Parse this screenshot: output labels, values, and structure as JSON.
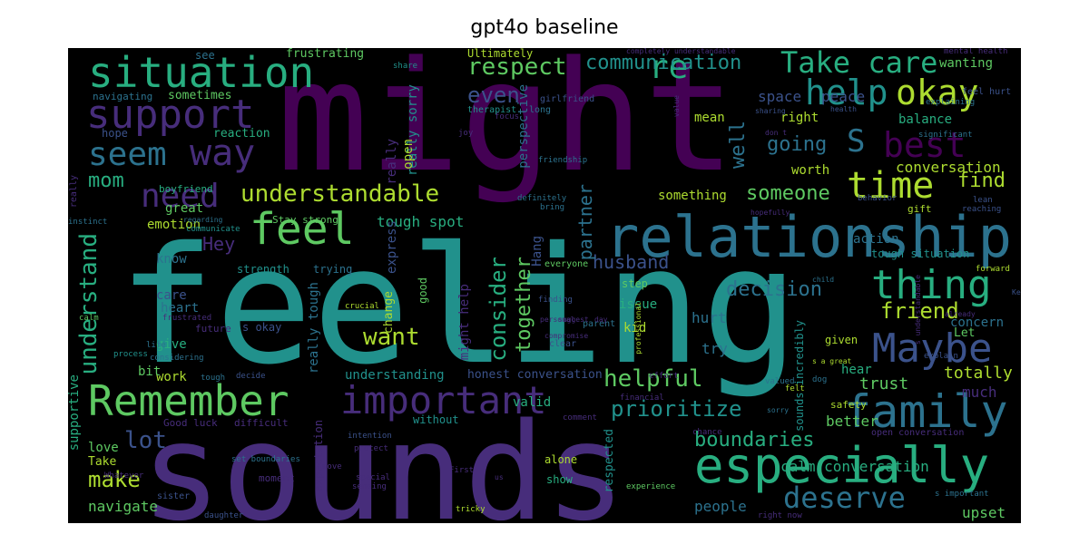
{
  "figure": {
    "title": "gpt4o baseline"
  },
  "colors": {
    "background": "#000000",
    "purple": "#440154",
    "indigo": "#472d7b",
    "blue": "#3b528b",
    "slate": "#2c728e",
    "teal": "#21918c",
    "green": "#28ae80",
    "lime": "#5ec962",
    "yellow": "#addc30"
  },
  "words": {
    "feeling": "feeling",
    "might": "might",
    "sounds": "sounds",
    "relationship": "relationship",
    "remember": "Remember",
    "especially": "especially",
    "family": "family",
    "important": "important",
    "situation": "situation",
    "support": "support",
    "feel": "feel",
    "maybe": "Maybe",
    "thing": "thing",
    "help": "help",
    "okay": "okay",
    "time": "time",
    "take_care": "Take care",
    "re": "re",
    "need": "need",
    "seem": "seem",
    "way": "way",
    "best": "best",
    "s": "S",
    "deserve": "deserve",
    "understandable": "understandable",
    "respect": "respect",
    "even": "even",
    "someone": "someone",
    "going": "going",
    "mom": "mom",
    "friend": "friend",
    "want": "want",
    "helpful": "helpful",
    "prioritize": "prioritize",
    "boundaries": "boundaries",
    "husband": "husband",
    "decision": "decision",
    "communication": "communication",
    "consider": "consider",
    "together": "together",
    "understand": "understand",
    "make": "make",
    "lot": "lot",
    "hey": "Hey",
    "conversation": "conversation",
    "well": "well",
    "partner": "partner",
    "find": "find",
    "tough_spot": "tough spot",
    "calm_conversation": "calm conversation",
    "navigate": "navigate",
    "people": "people",
    "upset": "upset",
    "trust": "trust",
    "totally": "totally",
    "hear": "hear",
    "much": "much",
    "better": "better",
    "balance": "balance",
    "worth": "worth",
    "mean": "mean",
    "right": "right",
    "space": "space",
    "peace": "peace",
    "wanting": "wanting",
    "something": "something",
    "hurt": "hurt",
    "try": "try",
    "kid": "kid",
    "issue": "issue",
    "step": "step",
    "emotion": "emotion",
    "great": "great",
    "know": "know",
    "care": "care",
    "heart": "heart",
    "give": "give",
    "work": "work",
    "bit": "bit",
    "boyfriend": "boyfriend",
    "reaction": "reaction",
    "hope": "hope",
    "sometimes": "sometimes",
    "navigating": "navigating",
    "see": "see",
    "frustrating": "frustrating",
    "ultimately": "Ultimately",
    "perspective": "perspective",
    "really_sorry": "really sorry",
    "really": "really",
    "open": "open",
    "express": "express",
    "change": "change",
    "hang": "Hang",
    "really_tough": "really tough",
    "might_help": "might help",
    "understanding": "understanding",
    "honest_conversation": "honest conversation",
    "valid": "valid",
    "supportive": "supportive",
    "love": "love",
    "take": "Take",
    "expectation": "expectation",
    "respected": "respected",
    "sounds_incredibly": "sounds incredibly",
    "concern": "concern",
    "given": "given",
    "let": "Let",
    "action": "action",
    "tough_situation": "tough situation",
    "stay_strong": "Stay strong",
    "strength": "strength",
    "trying": "trying",
    "good_luck": "Good luck",
    "difficult": "difficult",
    "without": "without",
    "s_okay": "s okay",
    "alone": "alone",
    "show": "show",
    "good": "good",
    "crucial": "crucial",
    "future": "future",
    "gift": "gift",
    "safety": "safety",
    "open_conversation": "open conversation",
    "everyone": "everyone",
    "finding": "finding",
    "parent": "parent",
    "clear": "clear",
    "girlfriend": "girlfriend",
    "therapist": "therapist",
    "share": "share",
    "long": "long",
    "friendship": "friendship",
    "joy": "joy",
    "focus": "focus",
    "definitely": "definitely",
    "bring": "bring",
    "mental_health": "mental health",
    "feel_hurt": "feel hurt",
    "explaining": "explaining",
    "completely_understandable": "completely understandable",
    "significant": "significant",
    "sharing": "sharing",
    "health": "health",
    "value": "value",
    "instinct": "instinct",
    "communicate": "communicate",
    "regarding": "regarding",
    "considering": "considering",
    "calm": "calm",
    "frustrated": "frustrated",
    "process": "process",
    "life": "life",
    "tough": "tough",
    "decide": "decide",
    "moment": "moment",
    "set_boundaries": "set boundaries",
    "whatever": "Whatever",
    "sister": "sister",
    "daughter": "daughter",
    "intention": "intention",
    "protect": "protect",
    "special": "special",
    "move": "move",
    "sending": "sending",
    "first": "First",
    "tricky": "tricky",
    "experience": "experience",
    "comment": "comment",
    "chance": "chance",
    "right_now": "right now",
    "s_important": "s important",
    "valued": "valued",
    "felt": "felt",
    "dog": "dog",
    "explain": "explain",
    "already": "already",
    "keep": "Keep",
    "forward": "forward",
    "behavior": "behavior",
    "reaching": "reaching",
    "lean": "lean",
    "hopefully": "hopefully",
    "personal": "personal",
    "child": "child",
    "suggest": "suggest",
    "day": "day",
    "professional": "professional",
    "compromise": "compromise",
    "effort": "effort",
    "financial": "financial",
    "sorry": "sorry",
    "s_a_great": "s a great",
    "s_understandable": "s understandable",
    "don_t": "don t",
    "us": "us"
  }
}
